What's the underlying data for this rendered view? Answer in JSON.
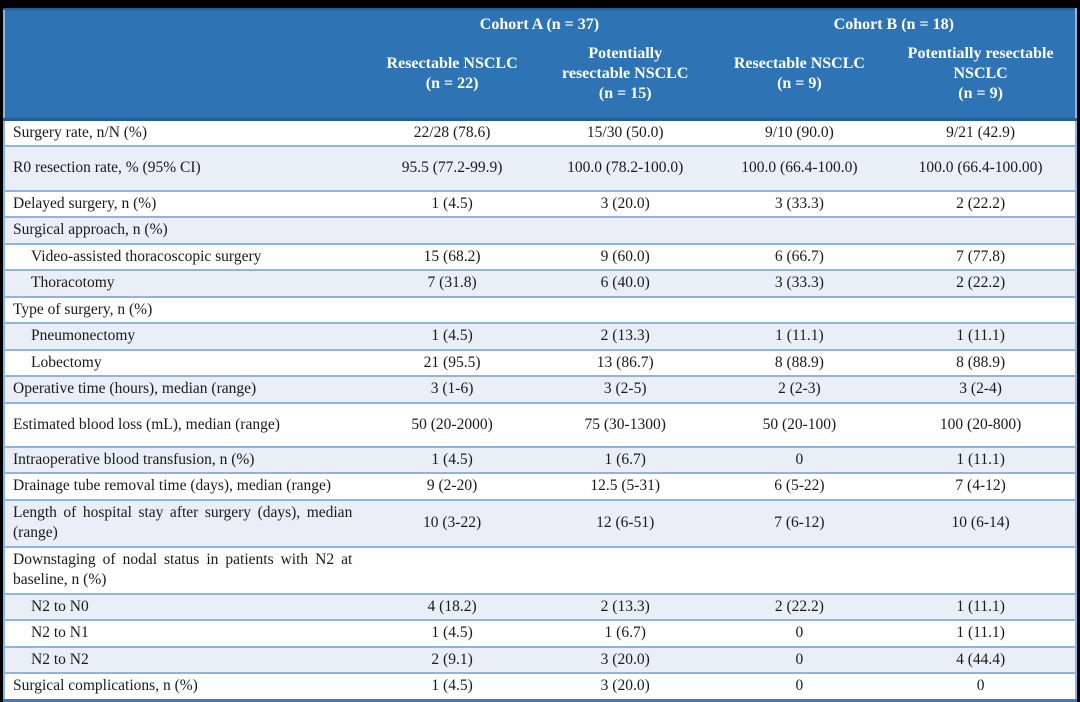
{
  "colors": {
    "header_bg": "#2E74B5",
    "header_text": "#FFFFFF",
    "alt_row_bg": "#E9EEF7",
    "row_border": "#8DB4E2",
    "outer_border": "#3E7CC0",
    "body_text": "#1A1A1A",
    "frame_bg": "#000000"
  },
  "table": {
    "cohorts": [
      {
        "label": "Cohort A (n = 37)"
      },
      {
        "label": "Cohort B (n = 18)"
      }
    ],
    "subgroups": [
      {
        "lines": [
          "Resectable NSCLC",
          "(n = 22)"
        ]
      },
      {
        "lines": [
          "Potentially",
          "resectable NSCLC",
          "(n = 15)"
        ]
      },
      {
        "lines": [
          "Resectable NSCLC",
          "(n = 9)"
        ]
      },
      {
        "lines": [
          "Potentially resectable",
          "NSCLC",
          "(n = 9)"
        ]
      }
    ],
    "rows": [
      {
        "label": "Surgery rate, n/N (%)",
        "indent": false,
        "section": false,
        "tall": false,
        "values": [
          "22/28 (78.6)",
          "15/30 (50.0)",
          "9/10 (90.0)",
          "9/21 (42.9)"
        ]
      },
      {
        "label": "R0 resection rate, % (95% CI)",
        "indent": false,
        "section": false,
        "tall": true,
        "values": [
          "95.5 (77.2-99.9)",
          "100.0 (78.2-100.0)",
          "100.0 (66.4-100.0)",
          "100.0 (66.4-100.00)"
        ]
      },
      {
        "label": "Delayed surgery, n (%)",
        "indent": false,
        "section": false,
        "tall": false,
        "values": [
          "1 (4.5)",
          "3 (20.0)",
          "3 (33.3)",
          "2 (22.2)"
        ]
      },
      {
        "label": "Surgical approach, n (%)",
        "indent": false,
        "section": true,
        "tall": false,
        "values": [
          "",
          "",
          "",
          ""
        ]
      },
      {
        "label": "Video-assisted thoracoscopic surgery",
        "indent": true,
        "section": false,
        "tall": false,
        "values": [
          "15 (68.2)",
          "9 (60.0)",
          "6 (66.7)",
          "7 (77.8)"
        ]
      },
      {
        "label": "Thoracotomy",
        "indent": true,
        "section": false,
        "tall": false,
        "values": [
          "7 (31.8)",
          "6 (40.0)",
          "3 (33.3)",
          "2 (22.2)"
        ]
      },
      {
        "label": "Type of surgery, n (%)",
        "indent": false,
        "section": true,
        "tall": false,
        "values": [
          "",
          "",
          "",
          ""
        ]
      },
      {
        "label": "Pneumonectomy",
        "indent": true,
        "section": false,
        "tall": false,
        "values": [
          "1 (4.5)",
          "2 (13.3)",
          "1 (11.1)",
          "1 (11.1)"
        ]
      },
      {
        "label": "Lobectomy",
        "indent": true,
        "section": false,
        "tall": false,
        "values": [
          "21 (95.5)",
          "13 (86.7)",
          "8 (88.9)",
          "8 (88.9)"
        ]
      },
      {
        "label": "Operative time (hours), median (range)",
        "indent": false,
        "section": false,
        "tall": false,
        "values": [
          "3 (1-6)",
          "3 (2-5)",
          "2 (2-3)",
          "3 (2-4)"
        ]
      },
      {
        "label": "Estimated blood loss (mL), median (range)",
        "indent": false,
        "section": false,
        "tall": true,
        "values": [
          "50 (20-2000)",
          "75 (30-1300)",
          "50 (20-100)",
          "100 (20-800)"
        ]
      },
      {
        "label": "Intraoperative blood transfusion, n (%)",
        "indent": false,
        "section": false,
        "tall": false,
        "values": [
          "1 (4.5)",
          "1 (6.7)",
          "0",
          "1 (11.1)"
        ]
      },
      {
        "label": "Drainage tube removal time (days), median (range)",
        "indent": false,
        "section": false,
        "tall": false,
        "values": [
          "9 (2-20)",
          "12.5 (5-31)",
          "6 (5-22)",
          "7 (4-12)"
        ]
      },
      {
        "label": "Length of hospital stay after surgery (days), median (range)",
        "indent": false,
        "section": false,
        "tall": false,
        "values": [
          "10 (3-22)",
          "12 (6-51)",
          "7 (6-12)",
          "10 (6-14)"
        ]
      },
      {
        "label": "Downstaging of nodal status in patients with N2 at baseline, n (%)",
        "indent": false,
        "section": true,
        "tall": false,
        "values": [
          "",
          "",
          "",
          ""
        ]
      },
      {
        "label": "N2 to N0",
        "indent": true,
        "section": false,
        "tall": false,
        "values": [
          "4 (18.2)",
          "2 (13.3)",
          "2 (22.2)",
          "1 (11.1)"
        ]
      },
      {
        "label": "N2 to N1",
        "indent": true,
        "section": false,
        "tall": false,
        "values": [
          "1 (4.5)",
          "1 (6.7)",
          "0",
          "1 (11.1)"
        ]
      },
      {
        "label": "N2 to N2",
        "indent": true,
        "section": false,
        "tall": false,
        "values": [
          "2 (9.1)",
          "3 (20.0)",
          "0",
          "4 (44.4)"
        ]
      },
      {
        "label": "Surgical complications, n (%)",
        "indent": false,
        "section": false,
        "tall": false,
        "values": [
          "1 (4.5)",
          "3 (20.0)",
          "0",
          "0"
        ]
      }
    ]
  }
}
